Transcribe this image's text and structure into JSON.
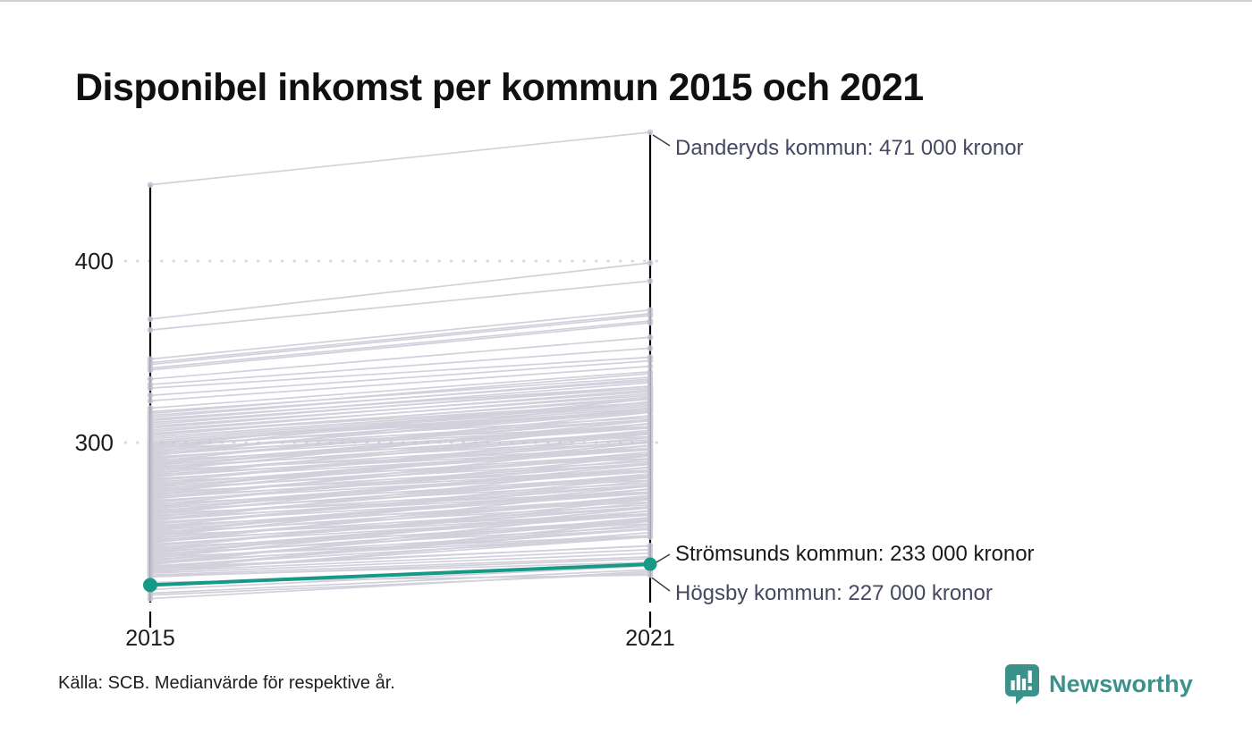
{
  "title": "Disponibel inkomst per kommun 2015 och 2021",
  "source": "Källa: SCB. Medianvärde för respektive år.",
  "brand": {
    "name": "Newsworthy",
    "color": "#3c928a"
  },
  "axis": {
    "years": [
      "2015",
      "2021"
    ],
    "yticks": [
      {
        "value": 400,
        "label": "400"
      },
      {
        "value": 300,
        "label": "300"
      }
    ]
  },
  "annotations": [
    {
      "id": "danderyd",
      "text": "Danderyds kommun: 471 000 kronor",
      "color": "#454860"
    },
    {
      "id": "stromsund",
      "text": "Strömsunds kommun: 233 000 kronor",
      "color": "#191919"
    },
    {
      "id": "hogsby",
      "text": "Högsby kommun: 227 000 kronor",
      "color": "#454860"
    }
  ],
  "colors": {
    "background_line": "#c6c3d2",
    "highlight": "#169a87",
    "axis": "#000000",
    "gridline": "#d9d9de",
    "connector": "#3a3a3a"
  },
  "chart_data": {
    "type": "line",
    "variant": "slope",
    "categories": [
      "2015",
      "2021"
    ],
    "title": "Disponibel inkomst per kommun 2015 och 2021",
    "ylim": [
      205,
      480
    ],
    "grid": "dotted-horizontal",
    "ytick_values": [
      300,
      400
    ],
    "highlight_series": {
      "name": "Strömsunds kommun",
      "values": [
        221.5,
        233
      ],
      "value_label": "233 000 kronor"
    },
    "labeled_points": [
      {
        "name": "Danderyds kommun",
        "year": "2021",
        "value": 471,
        "value_label": "471 000 kronor",
        "values": [
          442,
          471
        ]
      },
      {
        "name": "Strömsunds kommun",
        "year": "2021",
        "value": 233,
        "value_label": "233 000 kronor",
        "values": [
          221.5,
          233
        ]
      },
      {
        "name": "Högsby kommun",
        "year": "2021",
        "value": 227,
        "value_label": "227 000 kronor",
        "values": [
          223,
          227
        ]
      }
    ],
    "background_lines": [
      [
        442,
        471
      ],
      [
        368,
        399
      ],
      [
        362,
        389
      ],
      [
        346,
        373
      ],
      [
        344,
        371
      ],
      [
        343,
        370
      ],
      [
        341,
        367
      ],
      [
        340,
        366
      ],
      [
        335,
        358
      ],
      [
        332,
        352
      ],
      [
        330,
        347
      ],
      [
        326,
        345
      ],
      [
        323,
        342
      ],
      [
        319,
        339
      ],
      [
        317,
        336
      ],
      [
        316,
        338
      ],
      [
        315,
        334
      ],
      [
        314,
        335
      ],
      [
        313,
        331
      ],
      [
        312,
        333
      ],
      [
        311,
        330
      ],
      [
        310,
        331
      ],
      [
        309,
        328
      ],
      [
        308,
        329
      ],
      [
        307,
        326
      ],
      [
        306,
        327
      ],
      [
        305,
        324
      ],
      [
        305,
        322
      ],
      [
        304,
        325
      ],
      [
        303,
        322
      ],
      [
        302,
        321
      ],
      [
        301,
        320
      ],
      [
        300,
        319
      ],
      [
        300,
        317
      ],
      [
        299.8,
        317.8
      ],
      [
        299.2,
        322.2
      ],
      [
        298.6,
        313.6
      ],
      [
        298,
        324
      ],
      [
        297.4,
        317.4
      ],
      [
        296.8,
        308.8
      ],
      [
        296.2,
        324.2
      ],
      [
        295.6,
        312.6
      ],
      [
        295,
        317
      ],
      [
        294.4,
        308.4
      ],
      [
        293.8,
        318.8
      ],
      [
        293.2,
        312.2
      ],
      [
        292.6,
        322.6
      ],
      [
        292,
        308
      ],
      [
        291.4,
        312.4
      ],
      [
        290.8,
        314.8
      ],
      [
        290.2,
        303.2
      ],
      [
        289.6,
        316.6
      ],
      [
        289,
        308
      ],
      [
        288.4,
        310.4
      ],
      [
        287.8,
        305.8
      ],
      [
        287.2,
        310.2
      ],
      [
        286.6,
        301.6
      ],
      [
        286,
        312
      ],
      [
        285.4,
        305.4
      ],
      [
        284.8,
        296.8
      ],
      [
        284.2,
        312.2
      ],
      [
        283.6,
        300.6
      ],
      [
        283,
        305
      ],
      [
        282.4,
        296.4
      ],
      [
        281.8,
        306.8
      ],
      [
        281.2,
        300.2
      ],
      [
        280.6,
        310.6
      ],
      [
        280,
        296
      ],
      [
        279.4,
        300.4
      ],
      [
        278.8,
        302.8
      ],
      [
        278.2,
        291.2
      ],
      [
        277.6,
        304.6
      ],
      [
        277,
        296
      ],
      [
        276.4,
        298.4
      ],
      [
        275.8,
        293.8
      ],
      [
        275.2,
        298.2
      ],
      [
        274.6,
        289.6
      ],
      [
        274,
        300
      ],
      [
        273.4,
        293.4
      ],
      [
        272.8,
        284.8
      ],
      [
        272.2,
        300.2
      ],
      [
        271.6,
        288.6
      ],
      [
        271,
        293
      ],
      [
        270.4,
        284.4
      ],
      [
        269.8,
        294.8
      ],
      [
        269.2,
        288.2
      ],
      [
        268.6,
        298.6
      ],
      [
        268,
        284
      ],
      [
        267.4,
        288.4
      ],
      [
        266.8,
        290.8
      ],
      [
        266.2,
        279.2
      ],
      [
        265.6,
        292.6
      ],
      [
        265,
        284
      ],
      [
        264.4,
        286.4
      ],
      [
        263.8,
        281.8
      ],
      [
        263.2,
        286.2
      ],
      [
        262.6,
        277.6
      ],
      [
        262,
        288
      ],
      [
        261.4,
        281.4
      ],
      [
        260.8,
        272.8
      ],
      [
        260.2,
        288.2
      ],
      [
        259.6,
        276.6
      ],
      [
        259,
        281
      ],
      [
        258.4,
        272.4
      ],
      [
        257.8,
        282.8
      ],
      [
        257.2,
        276.2
      ],
      [
        256.6,
        286.6
      ],
      [
        256,
        272
      ],
      [
        255.4,
        276.4
      ],
      [
        254.8,
        278.8
      ],
      [
        254.2,
        267.2
      ],
      [
        253.6,
        280.6
      ],
      [
        253,
        272
      ],
      [
        252.4,
        274.4
      ],
      [
        251.8,
        269.8
      ],
      [
        251.2,
        274.2
      ],
      [
        250.6,
        265.6
      ],
      [
        250,
        276
      ],
      [
        249.4,
        269.4
      ],
      [
        248.8,
        260.8
      ],
      [
        248.2,
        276.2
      ],
      [
        247.6,
        264.6
      ],
      [
        247,
        269
      ],
      [
        246.4,
        260.4
      ],
      [
        245.8,
        270.8
      ],
      [
        245.2,
        264.2
      ],
      [
        244.6,
        274.6
      ],
      [
        244,
        260
      ],
      [
        243.4,
        264.4
      ],
      [
        242.8,
        266.8
      ],
      [
        242.2,
        255.2
      ],
      [
        241.6,
        268.6
      ],
      [
        241,
        260
      ],
      [
        240.4,
        262.4
      ],
      [
        239.8,
        257.8
      ],
      [
        239.2,
        262.2
      ],
      [
        238.6,
        253.6
      ],
      [
        238,
        264
      ],
      [
        237.4,
        257.4
      ],
      [
        236.8,
        248.8
      ],
      [
        236.2,
        264.2
      ],
      [
        235.6,
        252.6
      ],
      [
        235,
        257
      ],
      [
        234.4,
        248.4
      ],
      [
        233.8,
        258.8
      ],
      [
        233.2,
        252.2
      ],
      [
        232.6,
        262.6
      ],
      [
        232,
        248
      ],
      [
        231.4,
        252.4
      ],
      [
        230.8,
        254.8
      ],
      [
        230.2,
        243.2
      ],
      [
        229.6,
        256.6
      ],
      [
        229,
        248
      ],
      [
        228.4,
        250.4
      ],
      [
        229,
        241
      ],
      [
        231,
        243
      ],
      [
        228,
        239
      ],
      [
        227,
        237
      ],
      [
        226,
        236
      ],
      [
        226.5,
        234
      ],
      [
        219,
        232
      ],
      [
        217,
        230
      ],
      [
        216,
        228
      ],
      [
        214,
        229
      ],
      [
        223,
        227
      ]
    ]
  }
}
